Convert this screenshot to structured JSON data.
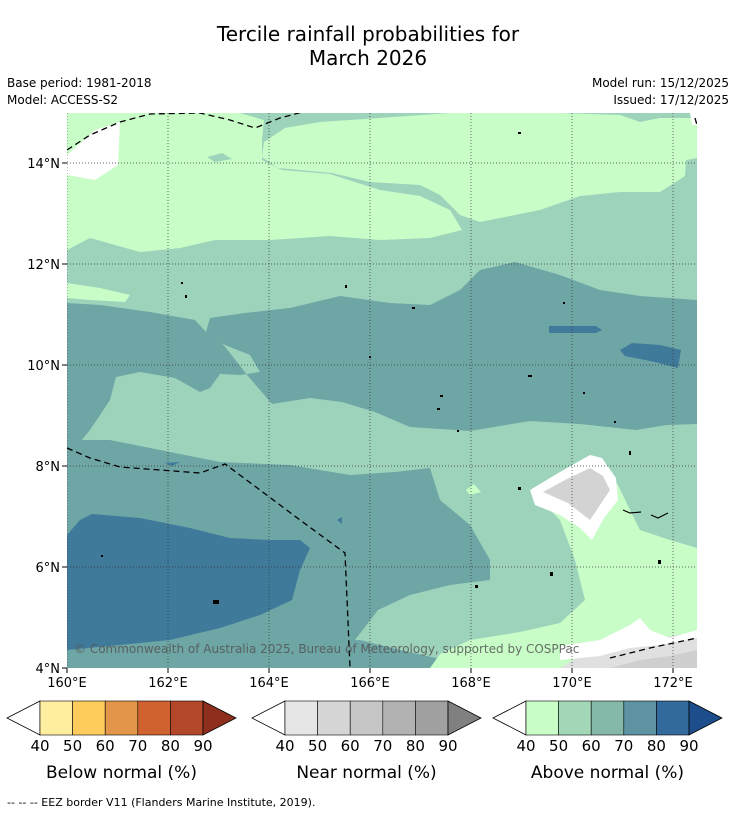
{
  "title_line1": "Tercile rainfall probabilities for",
  "title_line2": "March 2026",
  "base_period": "Base period: 1981-2018",
  "model": "Model: ACCESS-S2",
  "model_run": "Model run: 15/12/2025",
  "issued": "Issued: 17/12/2025",
  "copyright": "© Commonwealth of Australia 2025, Bureau of Meteorology, supported by COSPPac",
  "footnote": "--  --  -- EEZ border V11 (Flanders Marine Institute, 2019).",
  "map": {
    "lon_ticks": [
      "160°E",
      "162°E",
      "164°E",
      "166°E",
      "168°E",
      "170°E",
      "172°E"
    ],
    "lat_ticks": [
      "14°N",
      "12°N",
      "10°N",
      "8°N",
      "6°N",
      "4°N"
    ],
    "lon_values": [
      160,
      162,
      164,
      166,
      168,
      170,
      172
    ],
    "lat_values": [
      14,
      12,
      10,
      8,
      6,
      4
    ],
    "lon_range": [
      160,
      172.5
    ],
    "lat_range": [
      4,
      15
    ],
    "gridlines": "dotted"
  },
  "colorbars": [
    {
      "title": "Below normal (%)",
      "ticks": [
        "40",
        "50",
        "60",
        "70",
        "80",
        "90"
      ],
      "colors": [
        "#ffffff",
        "#ffeda0",
        "#fecc5c",
        "#e3964a",
        "#d0622f",
        "#b3472a",
        "#8e2f1e"
      ]
    },
    {
      "title": "Near normal (%)",
      "ticks": [
        "40",
        "50",
        "60",
        "70",
        "80",
        "90"
      ],
      "colors": [
        "#ffffff",
        "#e6e6e6",
        "#d6d6d6",
        "#c6c6c6",
        "#b2b2b2",
        "#a0a0a0",
        "#808080"
      ]
    },
    {
      "title": "Above normal (%)",
      "ticks": [
        "40",
        "50",
        "60",
        "70",
        "80",
        "90"
      ],
      "colors": [
        "#ffffff",
        "#c8fdc8",
        "#a2d8b8",
        "#83b8aa",
        "#5d93a3",
        "#336a9c",
        "#1d4d8a"
      ]
    }
  ],
  "probability_colors": {
    "above_40": "#c8fdc8",
    "above_50": "#9ed3bb",
    "above_60": "#6ea5a5",
    "above_70": "#3f7a9b",
    "near_40": "#e0e0e0",
    "near_50": "#d0d0d0"
  }
}
